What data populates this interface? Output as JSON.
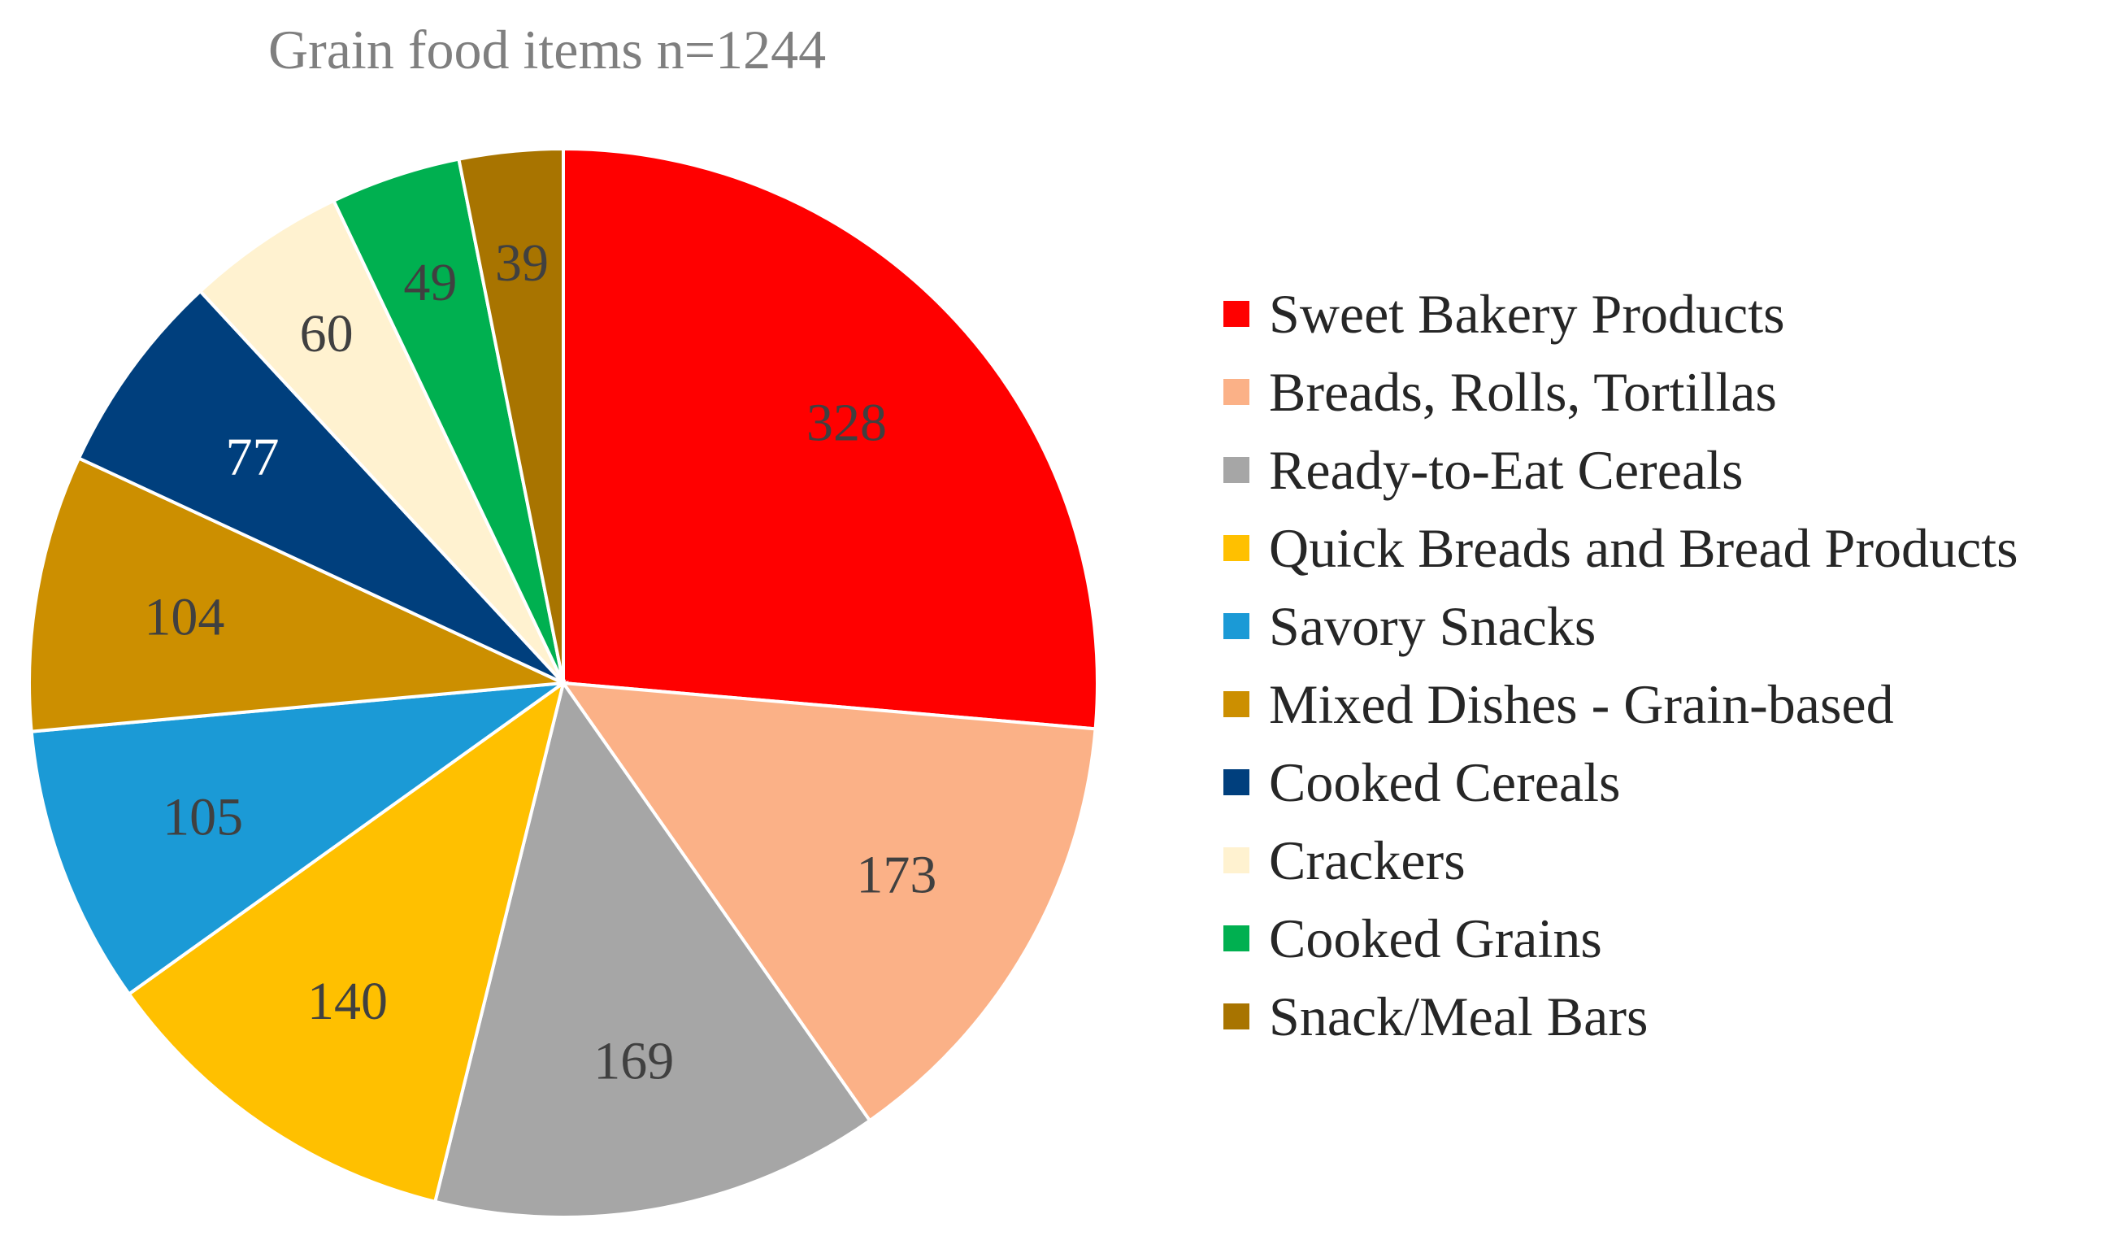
{
  "chart_data": {
    "type": "pie",
    "title": "Grain food items n=1244",
    "start_angle_deg": 0,
    "direction": "clockwise",
    "slices": [
      {
        "label": "Sweet Bakery Products",
        "value": 328,
        "color": "#ff0000",
        "label_color": "#404040"
      },
      {
        "label": "Breads, Rolls, Tortillas",
        "value": 173,
        "color": "#fbb187",
        "label_color": "#404040"
      },
      {
        "label": "Ready-to-Eat Cereals",
        "value": 169,
        "color": "#a6a6a6",
        "label_color": "#404040"
      },
      {
        "label": "Quick Breads and Bread Products",
        "value": 140,
        "color": "#ffc000",
        "label_color": "#404040"
      },
      {
        "label": "Savory Snacks",
        "value": 105,
        "color": "#1b9ad6",
        "label_color": "#404040"
      },
      {
        "label": "Mixed Dishes - Grain-based",
        "value": 104,
        "color": "#cc8f00",
        "label_color": "#404040"
      },
      {
        "label": "Cooked Cereals",
        "value": 77,
        "color": "#003f7d",
        "label_color": "#ffffff"
      },
      {
        "label": "Crackers",
        "value": 60,
        "color": "#fff2d0",
        "label_color": "#404040"
      },
      {
        "label": "Cooked Grains",
        "value": 49,
        "color": "#00b050",
        "label_color": "#404040"
      },
      {
        "label": "Snack/Meal Bars",
        "value": 39,
        "color": "#a87400",
        "label_color": "#404040"
      }
    ],
    "legend_position": "right"
  }
}
